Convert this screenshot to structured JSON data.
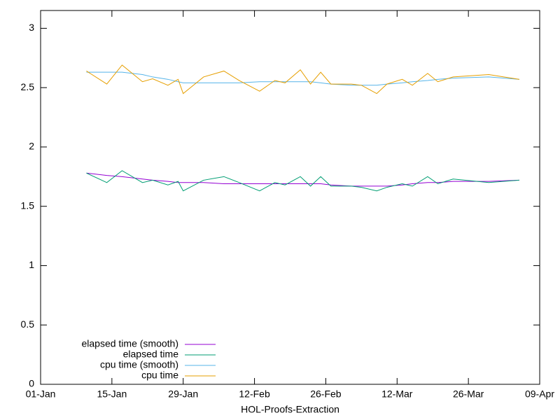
{
  "chart_data": {
    "type": "line",
    "xlabel": "HOL-Proofs-Extraction",
    "x": [
      "10-Jan",
      "14-Jan",
      "17-Jan",
      "21-Jan",
      "23-Jan",
      "26-Jan",
      "28-Jan",
      "29-Jan",
      "02-Feb",
      "06-Feb",
      "09-Feb",
      "13-Feb",
      "16-Feb",
      "18-Feb",
      "21-Feb",
      "23-Feb",
      "25-Feb",
      "27-Feb",
      "03-Mar",
      "05-Mar",
      "08-Mar",
      "10-Mar",
      "13-Mar",
      "15-Mar",
      "18-Mar",
      "20-Mar",
      "23-Mar",
      "30-Mar",
      "05-Apr"
    ],
    "series": [
      {
        "name": "elapsed time (smooth)",
        "color": "#9400d3",
        "values": [
          1.78,
          1.76,
          1.75,
          1.73,
          1.72,
          1.71,
          1.7,
          1.7,
          1.7,
          1.69,
          1.69,
          1.69,
          1.69,
          1.69,
          1.69,
          1.69,
          1.69,
          1.68,
          1.67,
          1.67,
          1.67,
          1.67,
          1.68,
          1.69,
          1.7,
          1.7,
          1.71,
          1.71,
          1.72
        ]
      },
      {
        "name": "elapsed time",
        "color": "#009e73",
        "values": [
          1.78,
          1.7,
          1.8,
          1.7,
          1.72,
          1.68,
          1.71,
          1.63,
          1.72,
          1.75,
          1.7,
          1.63,
          1.7,
          1.68,
          1.75,
          1.67,
          1.75,
          1.67,
          1.67,
          1.66,
          1.63,
          1.66,
          1.69,
          1.67,
          1.75,
          1.69,
          1.73,
          1.7,
          1.72
        ]
      },
      {
        "name": "cpu time (smooth)",
        "color": "#56b4e9",
        "values": [
          2.63,
          2.63,
          2.63,
          2.61,
          2.59,
          2.57,
          2.55,
          2.54,
          2.54,
          2.54,
          2.54,
          2.55,
          2.55,
          2.55,
          2.55,
          2.55,
          2.54,
          2.53,
          2.52,
          2.52,
          2.52,
          2.53,
          2.54,
          2.55,
          2.56,
          2.57,
          2.58,
          2.59,
          2.57
        ]
      },
      {
        "name": "cpu time",
        "color": "#e69f00",
        "values": [
          2.64,
          2.53,
          2.69,
          2.55,
          2.575,
          2.52,
          2.57,
          2.45,
          2.59,
          2.64,
          2.56,
          2.47,
          2.56,
          2.54,
          2.65,
          2.53,
          2.63,
          2.53,
          2.53,
          2.52,
          2.45,
          2.53,
          2.57,
          2.52,
          2.62,
          2.55,
          2.59,
          2.61,
          2.57
        ]
      }
    ],
    "xlim": [
      "01-Jan",
      "09-Apr"
    ],
    "xticks": [
      "01-Jan",
      "15-Jan",
      "29-Jan",
      "12-Feb",
      "26-Feb",
      "12-Mar",
      "26-Mar",
      "09-Apr"
    ],
    "ylim": [
      0,
      3.15
    ],
    "yticks": [
      0,
      0.5,
      1,
      1.5,
      2,
      2.5,
      3
    ],
    "legend": "bottom-left"
  }
}
